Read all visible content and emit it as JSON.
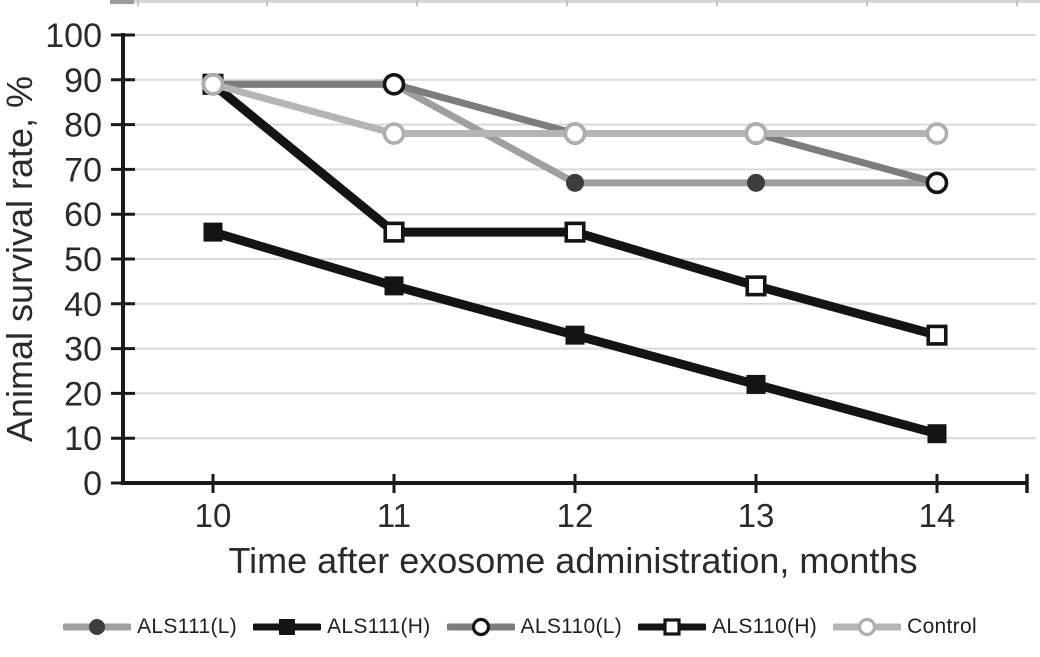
{
  "figure": {
    "kind": "static-scientific-line-chart",
    "background": "#ffffff",
    "text_color": "#2b2b2b",
    "axis_color": "#1a1a1a",
    "grid_color": "#d9d9d9"
  },
  "top_rule": {
    "line_color": "#d7d7d7",
    "dark_segment_color": "#9b9b9b",
    "column_tick_positions": [
      137,
      266,
      416,
      566,
      716,
      866,
      1016
    ]
  },
  "chart_data": {
    "type": "line",
    "title": "",
    "xlabel": "Time after exosome administration, months",
    "ylabel": "Animal survival rate, %",
    "x": [
      10,
      11,
      12,
      13,
      14
    ],
    "xlim": [
      9.5,
      14.5
    ],
    "ylim": [
      0,
      100
    ],
    "yticks": [
      0,
      10,
      20,
      30,
      40,
      50,
      60,
      70,
      80,
      90,
      100
    ],
    "xticks": [
      10,
      11,
      12,
      13,
      14
    ],
    "grid": true,
    "legend_position": "bottom",
    "series": [
      {
        "name": "ALS111(L)",
        "values": [
          89,
          89,
          67,
          67,
          67
        ],
        "line_color": "#9f9f9f",
        "line_width": 7,
        "marker": "circle-filled",
        "marker_color": "#3d3d3d"
      },
      {
        "name": "ALS111(H)",
        "values": [
          56,
          44,
          33,
          22,
          11
        ],
        "line_color": "#141414",
        "line_width": 9,
        "marker": "square-filled",
        "marker_color": "#141414"
      },
      {
        "name": "ALS110(L)",
        "values": [
          89,
          89,
          78,
          78,
          67
        ],
        "line_color": "#7d7d7d",
        "line_width": 7,
        "marker": "circle-open",
        "marker_color": "#141414"
      },
      {
        "name": "ALS110(H)",
        "values": [
          89,
          56,
          56,
          44,
          33
        ],
        "line_color": "#141414",
        "line_width": 9,
        "marker": "square-open",
        "marker_color": "#141414"
      },
      {
        "name": "Control",
        "values": [
          89,
          78,
          78,
          78,
          78
        ],
        "line_color": "#b5b5b5",
        "line_width": 7,
        "marker": "circle-open",
        "marker_color": "#aeaeae"
      }
    ]
  }
}
